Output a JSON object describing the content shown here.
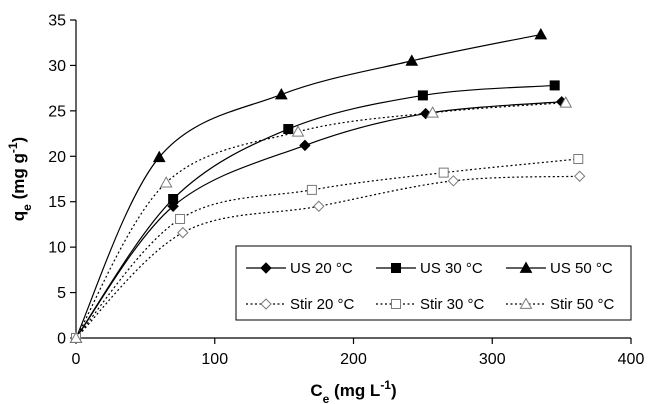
{
  "chart_data": {
    "type": "scatter",
    "title": "",
    "xlabel": "C_e (mg L^-1)",
    "xlabel_parts": {
      "main": "C",
      "sub": "e",
      "unit_pre": " (mg L",
      "sup": "-1",
      "unit_post": ")"
    },
    "ylabel": "q_e (mg g^-1)",
    "ylabel_parts": {
      "main": "q",
      "sub": "e",
      "unit_pre": " (mg g",
      "sup": "-1",
      "unit_post": ")"
    },
    "xlim": [
      0,
      400
    ],
    "ylim": [
      0,
      35
    ],
    "xticks": [
      0,
      100,
      200,
      300,
      400
    ],
    "yticks": [
      0,
      5,
      10,
      15,
      20,
      25,
      30,
      35
    ],
    "grid": false,
    "legend_position": "bottom-right",
    "series": [
      {
        "name": "US 20 °C",
        "marker": "diamond-filled",
        "line": "solid",
        "x": [
          0,
          70,
          165,
          252,
          350
        ],
        "y": [
          0,
          14.5,
          21.2,
          24.7,
          26.0
        ]
      },
      {
        "name": "US 30 °C",
        "marker": "square-filled",
        "line": "solid",
        "x": [
          0,
          70,
          153,
          250,
          345
        ],
        "y": [
          0,
          15.3,
          23.0,
          26.7,
          27.8
        ]
      },
      {
        "name": "US 50 °C",
        "marker": "triangle-filled",
        "line": "solid",
        "x": [
          0,
          60,
          148,
          242,
          335
        ],
        "y": [
          0,
          19.9,
          26.8,
          30.5,
          33.4
        ]
      },
      {
        "name": "Stir 20 °C",
        "marker": "diamond-open",
        "line": "dotted",
        "x": [
          0,
          77,
          175,
          272,
          363
        ],
        "y": [
          0,
          11.6,
          14.5,
          17.3,
          17.8
        ]
      },
      {
        "name": "Stir 30 °C",
        "marker": "square-open",
        "line": "dotted",
        "x": [
          0,
          75,
          170,
          265,
          362
        ],
        "y": [
          0,
          13.1,
          16.3,
          18.2,
          19.7
        ]
      },
      {
        "name": "Stir 50 °C",
        "marker": "triangle-open",
        "line": "dotted",
        "x": [
          0,
          65,
          160,
          257,
          353
        ],
        "y": [
          0,
          17.1,
          22.7,
          24.8,
          25.9
        ]
      }
    ]
  }
}
